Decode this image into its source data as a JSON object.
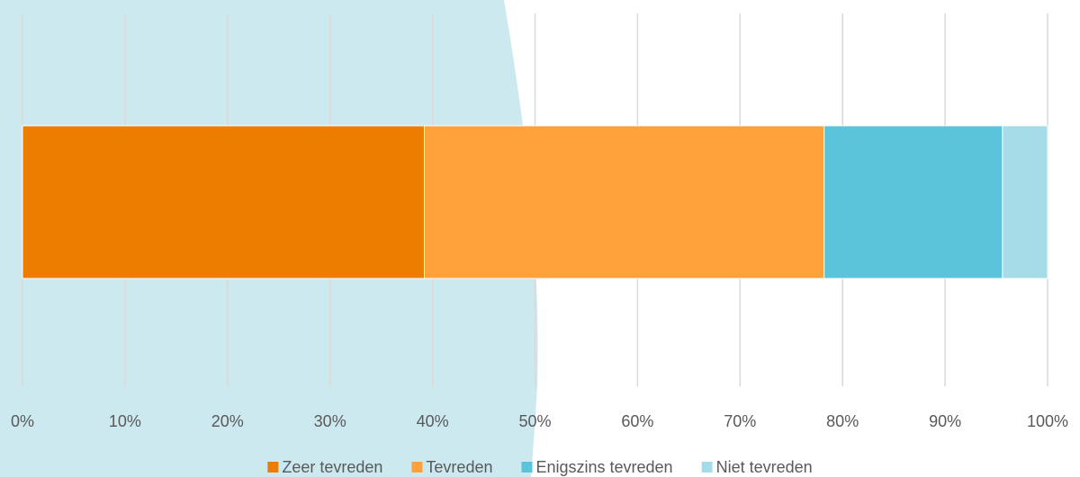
{
  "chart_data": {
    "type": "bar",
    "stacked": true,
    "horizontal": true,
    "series": [
      {
        "name": "Zeer tevreden",
        "color": "#ed7d00",
        "values": [
          39.2
        ]
      },
      {
        "name": "Tevreden",
        "color": "#ffa13b",
        "values": [
          39.0
        ]
      },
      {
        "name": "Enigszins tevreden",
        "color": "#5bc4db",
        "values": [
          17.4
        ]
      },
      {
        "name": "Niet tevreden",
        "color": "#a6dbe8",
        "values": [
          4.4
        ]
      }
    ],
    "xlim": [
      0,
      100
    ],
    "xticks": [
      {
        "value": 0,
        "label": "0%"
      },
      {
        "value": 10,
        "label": "10%"
      },
      {
        "value": 20,
        "label": "20%"
      },
      {
        "value": 30,
        "label": "30%"
      },
      {
        "value": 40,
        "label": "40%"
      },
      {
        "value": 50,
        "label": "50%"
      },
      {
        "value": 60,
        "label": "60%"
      },
      {
        "value": 70,
        "label": "70%"
      },
      {
        "value": 80,
        "label": "80%"
      },
      {
        "value": 90,
        "label": "90%"
      },
      {
        "value": 100,
        "label": "100%"
      }
    ],
    "grid": true,
    "legend": "bottom"
  }
}
